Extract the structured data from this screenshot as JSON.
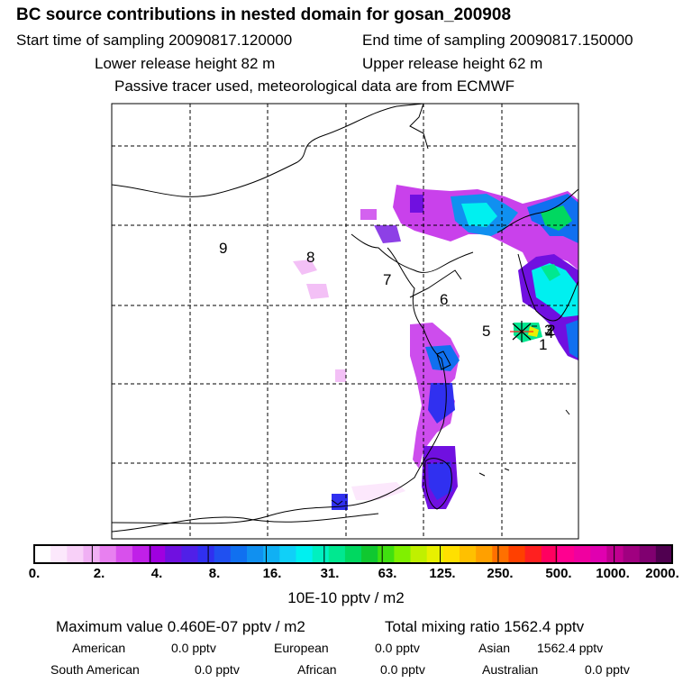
{
  "header": {
    "title": "BC  source contributions in nested domain for gosan_200908",
    "start_label": "Start time of sampling 20090817.120000",
    "end_label": "End time of sampling 20090817.150000",
    "lower_label": "Lower release height   82 m",
    "upper_label": "Upper release height   62 m",
    "note": "Passive tracer used, meteorological data are from ECMWF"
  },
  "map": {
    "region_labels": [
      "9",
      "8",
      "7",
      "6",
      "5",
      "3",
      "2",
      "4",
      "1"
    ]
  },
  "colorbar": {
    "tick_labels": [
      "0.",
      "2.",
      "4.",
      "8.",
      "16.",
      "31.",
      "63.",
      "125.",
      "250.",
      "500.",
      "1000.",
      "2000."
    ],
    "colors": [
      "#ffffff",
      "#fce8fc",
      "#f8d0f8",
      "#f0b0f4",
      "#e880f0",
      "#d850ec",
      "#c020e8",
      "#a000e0",
      "#7010e0",
      "#5020e8",
      "#3030f0",
      "#2050f0",
      "#1070f0",
      "#1090f0",
      "#10b0f4",
      "#10d0f8",
      "#00f0f0",
      "#00f0c0",
      "#00e890",
      "#00d860",
      "#10c830",
      "#40e010",
      "#80f000",
      "#c0f000",
      "#e8f000",
      "#ffe000",
      "#ffc000",
      "#ffa000",
      "#ff7000",
      "#ff4000",
      "#ff2020",
      "#ff0060",
      "#ff0090",
      "#f000a0",
      "#e000b0",
      "#c00090",
      "#a00080",
      "#800070",
      "#500050"
    ],
    "units": "10E-10 pptv / m2"
  },
  "stats": {
    "max_value": "Maximum value  0.460E-07 pptv / m2",
    "total": "Total mixing ratio     1562.4 pptv",
    "american": "American",
    "american_val": "0.0 pptv",
    "european": "European",
    "european_val": "0.0 pptv",
    "asian": "Asian",
    "asian_val": "1562.4 pptv",
    "south_american": "South American",
    "south_american_val": "0.0 pptv",
    "african": "African",
    "african_val": "0.0 pptv",
    "australian": "Australian",
    "australian_val": "0.0 pptv"
  }
}
